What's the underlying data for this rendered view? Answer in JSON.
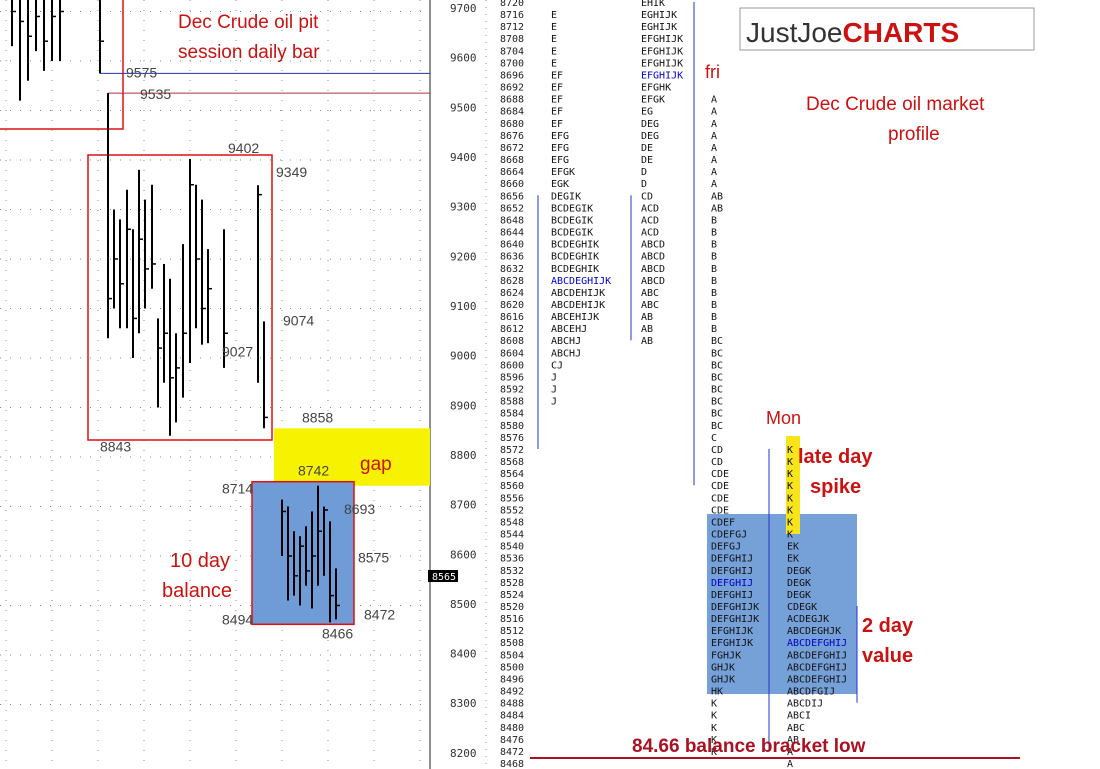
{
  "chart_data": [
    {
      "type": "bar",
      "subtype": "ohlc-daily",
      "title": "Dec Crude oil pit session daily bar",
      "ylim": [
        8200,
        9750
      ],
      "y_ticks": [
        8300,
        8400,
        8500,
        8600,
        8700,
        8800,
        8900,
        9000,
        9100,
        9200,
        9300,
        9400,
        9500,
        9600,
        9700
      ],
      "bars": [
        {
          "high": 9850,
          "low": 9630,
          "close": 9700
        },
        {
          "high": 9850,
          "low": 9520,
          "close": 9680
        },
        {
          "high": 9850,
          "low": 9560,
          "close": 9650
        },
        {
          "high": 9850,
          "low": 9620,
          "close": 9690
        },
        {
          "high": 9850,
          "low": 9580,
          "close": 9640
        },
        {
          "high": 9850,
          "low": 9600,
          "close": 9690
        },
        {
          "high": 9850,
          "low": 9600,
          "close": 9700
        },
        {
          "high": 9850,
          "low": 9575,
          "close": 9640
        },
        {
          "high": 9535,
          "low": 9040,
          "close": 9120
        },
        {
          "high": 9300,
          "low": 9100,
          "close": 9200
        },
        {
          "high": 9280,
          "low": 9060,
          "close": 9150
        },
        {
          "high": 9340,
          "low": 9060,
          "close": 9260
        },
        {
          "high": 9260,
          "low": 9000,
          "close": 9080
        },
        {
          "high": 9380,
          "low": 9050,
          "close": 9240
        },
        {
          "high": 9320,
          "low": 9100,
          "close": 9180
        },
        {
          "high": 9350,
          "low": 9140,
          "close": 9190
        },
        {
          "high": 9080,
          "low": 8900,
          "close": 9020
        },
        {
          "high": 9190,
          "low": 8950,
          "close": 9050
        },
        {
          "high": 9160,
          "low": 8843,
          "close": 8960
        },
        {
          "high": 9050,
          "low": 8870,
          "close": 8980
        },
        {
          "high": 9230,
          "low": 8920,
          "close": 9050
        },
        {
          "high": 9402,
          "low": 8990,
          "close": 9350
        },
        {
          "high": 9350,
          "low": 9060,
          "close": 9200
        },
        {
          "high": 9320,
          "low": 9027,
          "close": 9100
        },
        {
          "high": 9220,
          "low": 9030,
          "close": 9140
        },
        {
          "high": 9260,
          "low": 8980,
          "close": 9050
        },
        {
          "high": 9349,
          "low": 8950,
          "close": 9330
        },
        {
          "high": 9074,
          "low": 8858,
          "close": 8880
        },
        {
          "high": 8714,
          "low": 8600,
          "close": 8690
        },
        {
          "high": 8700,
          "low": 8510,
          "close": 8600
        },
        {
          "high": 8650,
          "low": 8520,
          "close": 8560
        },
        {
          "high": 8640,
          "low": 8500,
          "close": 8620
        },
        {
          "high": 8660,
          "low": 8540,
          "close": 8570
        },
        {
          "high": 8690,
          "low": 8494,
          "close": 8600
        },
        {
          "high": 8742,
          "low": 8540,
          "close": 8650
        },
        {
          "high": 8700,
          "low": 8560,
          "close": 8693
        },
        {
          "high": 8670,
          "low": 8466,
          "close": 8520
        },
        {
          "high": 8575,
          "low": 8472,
          "close": 8500
        }
      ],
      "labels": [
        {
          "text": "9575",
          "price": 9575
        },
        {
          "text": "9535",
          "price": 9535
        },
        {
          "text": "9402",
          "price": 9402
        },
        {
          "text": "9349",
          "price": 9349
        },
        {
          "text": "9074",
          "price": 9074
        },
        {
          "text": "9027",
          "price": 9027
        },
        {
          "text": "8858",
          "price": 8858
        },
        {
          "text": "8843",
          "price": 8843
        },
        {
          "text": "8714",
          "price": 8714
        },
        {
          "text": "8742",
          "price": 8742
        },
        {
          "text": "8693",
          "price": 8693
        },
        {
          "text": "8575",
          "price": 8575
        },
        {
          "text": "8472",
          "price": 8472
        },
        {
          "text": "8494",
          "price": 8494
        },
        {
          "text": "8466",
          "price": 8466
        }
      ],
      "annotations": [
        "gap",
        "10 day",
        "balance"
      ],
      "current_price": "8565"
    },
    {
      "type": "table",
      "subtype": "market-profile",
      "title": "Dec Crude oil market profile",
      "brand": {
        "part1": "JustJoe",
        "part2": "CHARTS",
        "accent": "#cc1111"
      },
      "price_step": 4,
      "price_start": 8720,
      "price_end": 8464,
      "axis_ticks": [
        8200,
        8300,
        8400,
        8500,
        8600,
        8700,
        8800,
        8900,
        9000,
        9100,
        9200,
        9300,
        9400,
        9500,
        9600,
        9700
      ],
      "highlight_color": "#0000cc",
      "columns": [
        {
          "start": 8720,
          "poc": [
            8628
          ],
          "letters": [
            "",
            "E",
            "E",
            "E",
            "E",
            "E",
            "EF",
            "EF",
            "EF",
            "EF",
            "EF",
            "EFG",
            "EFG",
            "EFG",
            "EFGK",
            "EGK",
            "DEGIK",
            "BCDEGIK",
            "BCDEGIK",
            "BCDEGIK",
            "BCDEGHIK",
            "BCDEGHIK",
            "BCDEGHIK",
            "ABCDEGHIJK",
            "ABCDEHIJK",
            "ABCDEHIJK",
            "ABCEHIJK",
            "ABCEHJ",
            "ABCHJ",
            "ABCHJ",
            "CJ",
            "J",
            "J",
            "J"
          ]
        },
        {
          "start": 8720,
          "poc": [
            8696
          ],
          "letters": [
            "EHIK",
            "EGHIJK",
            "EGHIJK",
            "EFGHIJK",
            "EFGHIJK",
            "EFGHIJK",
            "EFGHIJK",
            "EFGHK",
            "EFGK",
            "EG",
            "DEG",
            "DEG",
            "DE",
            "DE",
            "D",
            "D",
            "CD",
            "ACD",
            "ACD",
            "ACD",
            "ABCD",
            "ABCD",
            "ABCD",
            "ABCD",
            "ABC",
            "ABC",
            "AB",
            "AB",
            "AB"
          ]
        },
        {
          "start": 8720,
          "poc": [
            8528
          ],
          "letters": [
            "",
            "",
            "",
            "",
            "",
            "",
            "",
            "",
            "A",
            "A",
            "A",
            "A",
            "A",
            "A",
            "A",
            "A",
            "AB",
            "AB",
            "B",
            "B",
            "B",
            "B",
            "B",
            "B",
            "B",
            "B",
            "B",
            "B",
            "BC",
            "BC",
            "BC",
            "BC",
            "BC",
            "BC",
            "BC",
            "BC",
            "C",
            "CD",
            "CD",
            "CDE",
            "CDE",
            "CDE",
            "CDE",
            "CDEF",
            "CDEFGJ",
            "DEFGJ",
            "DEFGHIJ",
            "DEFGHIJ",
            "DEFGHIJ",
            "DEFGHIJ",
            "DEFGHIJK",
            "DEFGHIJK",
            "EFGHIJK",
            "EFGHIJK",
            "FGHJK",
            "GHJK",
            "GHJK",
            "HK",
            "K",
            "K",
            "K",
            "K",
            "K"
          ]
        },
        {
          "start": 8572,
          "poc": [
            8508
          ],
          "letters": [
            "K",
            "K",
            "K",
            "K",
            "K",
            "K",
            "K",
            "K",
            "EK",
            "EK",
            "DEGK",
            "DEGK",
            "DEGK",
            "CDEGK",
            "ACDEGJK",
            "ABCDEGHJK",
            "ABCDEFGHIJ",
            "ABCDEFGHIJ",
            "ABCDEFGHIJ",
            "ABCDEFGHIJ",
            "ABCDFGIJ",
            "ABCDIJ",
            "ABCI",
            "ABC",
            "AB",
            "A",
            "A"
          ]
        }
      ],
      "annotations": {
        "fri": "fri",
        "mon": "Mon",
        "late_day_1": "late day",
        "late_day_2": "spike",
        "two_day_1": "2 day",
        "two_day_2": "value",
        "bracket_low": "84.66 balance bracket low"
      },
      "boxes": {
        "balance_fill": "#6f9bd6",
        "gap_fill": "#f7f300",
        "box_stroke": "#dd1111"
      }
    }
  ]
}
